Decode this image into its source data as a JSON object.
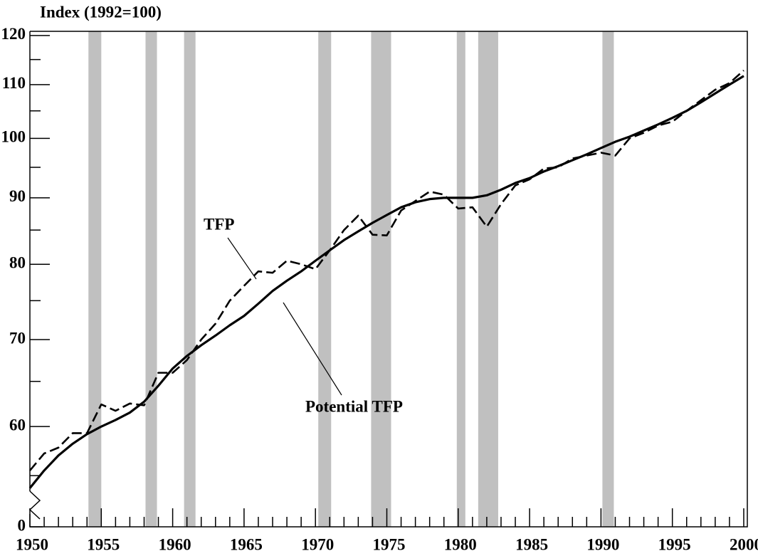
{
  "chart_data": {
    "type": "line",
    "y_axis_label": "Index (1992=100)",
    "log_scale": true,
    "x": [
      1950,
      1951,
      1952,
      1953,
      1954,
      1955,
      1956,
      1957,
      1958,
      1959,
      1960,
      1961,
      1962,
      1963,
      1964,
      1965,
      1966,
      1967,
      1968,
      1969,
      1970,
      1971,
      1972,
      1973,
      1974,
      1975,
      1976,
      1977,
      1978,
      1979,
      1980,
      1981,
      1982,
      1983,
      1984,
      1985,
      1986,
      1987,
      1988,
      1989,
      1990,
      1991,
      1992,
      1993,
      1994,
      1995,
      1996,
      1997,
      1998,
      1999,
      2000
    ],
    "series": [
      {
        "name": "TFP",
        "color": "#000000",
        "dash": true,
        "values": [
          55.5,
          57.2,
          57.8,
          59.3,
          59.3,
          62.4,
          61.7,
          62.5,
          62.3,
          66.0,
          66.0,
          67.5,
          70.0,
          72.0,
          75.0,
          77.0,
          79.0,
          78.8,
          80.5,
          80.0,
          79.3,
          82.0,
          85.0,
          87.2,
          84.3,
          84.2,
          88.0,
          89.5,
          91.0,
          90.5,
          88.3,
          88.5,
          85.5,
          89.0,
          92.0,
          93.0,
          94.8,
          95.0,
          96.5,
          97.0,
          97.5,
          97.0,
          100.0,
          101.0,
          102.3,
          103.0,
          105.0,
          107.0,
          109.0,
          110.3,
          112.8
        ]
      },
      {
        "name": "Potential TFP",
        "color": "#000000",
        "dash": false,
        "values": [
          53.8,
          55.5,
          57.0,
          58.2,
          59.2,
          60.0,
          60.7,
          61.5,
          62.7,
          64.5,
          66.5,
          68.0,
          69.3,
          70.5,
          71.8,
          73.0,
          74.6,
          76.3,
          77.7,
          79.0,
          80.5,
          82.0,
          83.5,
          84.8,
          86.1,
          87.3,
          88.5,
          89.3,
          89.8,
          90.0,
          90.0,
          90.0,
          90.4,
          91.3,
          92.4,
          93.2,
          94.3,
          95.2,
          96.2,
          97.2,
          98.3,
          99.4,
          100.3,
          101.4,
          102.5,
          103.7,
          105.0,
          106.6,
          108.3,
          110.0,
          111.7
        ]
      }
    ],
    "xlim": [
      1950,
      2000.25
    ],
    "xticks": [
      1950,
      1955,
      1960,
      1965,
      1970,
      1975,
      1980,
      1985,
      1990,
      1995,
      2000
    ],
    "xminor": [
      1951,
      1952,
      1953,
      1954,
      1956,
      1957,
      1958,
      1959,
      1961,
      1962,
      1963,
      1964,
      1966,
      1967,
      1968,
      1969,
      1971,
      1972,
      1973,
      1974,
      1976,
      1977,
      1978,
      1979,
      1981,
      1982,
      1983,
      1984,
      1986,
      1987,
      1988,
      1989,
      1991,
      1992,
      1993,
      1994,
      1996,
      1997,
      1998,
      1999
    ],
    "ylim": [
      53.5,
      120.9
    ],
    "yticks": [
      60,
      70,
      80,
      90,
      100,
      110,
      120
    ],
    "yminor": [
      55,
      65,
      75,
      85,
      95,
      105,
      115
    ],
    "axis_break_label": "0",
    "shaded_periods": [
      [
        1954.1,
        1955.0
      ],
      [
        1958.1,
        1958.9
      ],
      [
        1960.8,
        1961.6
      ],
      [
        1970.2,
        1971.1
      ],
      [
        1973.9,
        1975.3
      ],
      [
        1979.9,
        1980.5
      ],
      [
        1981.4,
        1982.8
      ],
      [
        1990.1,
        1990.9
      ]
    ],
    "annotations": [
      "TFP",
      "Potential TFP"
    ]
  }
}
